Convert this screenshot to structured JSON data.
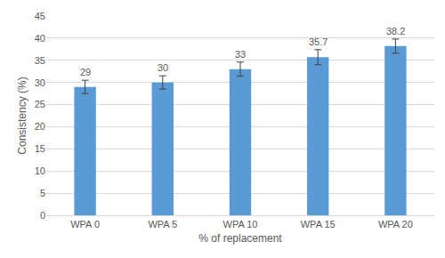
{
  "chart_data": {
    "type": "bar",
    "x_label": "% of replacement",
    "y_label": "Consistency (%)",
    "categories": [
      "WPA 0",
      "WPA 5",
      "WPA 10",
      "WPA 15",
      "WPA 20"
    ],
    "values": [
      29,
      30,
      33,
      35.7,
      38.2
    ],
    "errors": [
      1.5,
      1.5,
      1.6,
      1.7,
      1.6
    ],
    "color": "#5b9bd5",
    "ylim": [
      0,
      45
    ],
    "yticks": [
      0,
      5,
      10,
      15,
      20,
      25,
      30,
      35,
      40,
      45
    ],
    "grid": true,
    "data_labels": true
  }
}
